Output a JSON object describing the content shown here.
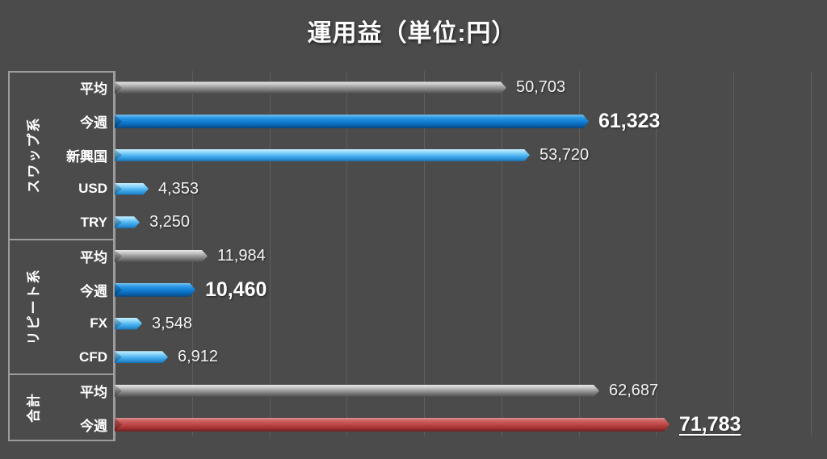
{
  "title": "運用益（単位:円）",
  "colors": {
    "background": "#4b4b4b",
    "gridline": "#5e5e5e",
    "axis": "#9c9c9c",
    "box_border": "#9c9c9c",
    "text": "#ffffff",
    "bar_gray": "#9a9a9a",
    "bar_blue": "#0f7ad0",
    "bar_lightblue": "#49b1ee",
    "bar_red": "#b84242"
  },
  "chart_data": {
    "type": "bar",
    "orientation": "horizontal",
    "title": "運用益（単位:円）",
    "unit": "円",
    "axis": {
      "min": 0,
      "max": 90000,
      "gridline_interval": 10000,
      "gridlines_visible": true,
      "tick_labels_visible": false
    },
    "legend_position": "none",
    "groups": [
      {
        "label": "スワップ系",
        "rows": [
          {
            "label": "平均",
            "value": 50703,
            "value_label": "50,703",
            "color": "gray",
            "emphasis": false,
            "underline": false
          },
          {
            "label": "今週",
            "value": 61323,
            "value_label": "61,323",
            "color": "blue",
            "emphasis": true,
            "underline": false
          },
          {
            "label": "新興国",
            "value": 53720,
            "value_label": "53,720",
            "color": "lightblue",
            "emphasis": false,
            "underline": false
          },
          {
            "label": "USD",
            "value": 4353,
            "value_label": "4,353",
            "color": "lightblue",
            "emphasis": false,
            "underline": false
          },
          {
            "label": "TRY",
            "value": 3250,
            "value_label": "3,250",
            "color": "lightblue",
            "emphasis": false,
            "underline": false
          }
        ]
      },
      {
        "label": "リピート系",
        "rows": [
          {
            "label": "平均",
            "value": 11984,
            "value_label": "11,984",
            "color": "gray",
            "emphasis": false,
            "underline": false
          },
          {
            "label": "今週",
            "value": 10460,
            "value_label": "10,460",
            "color": "blue",
            "emphasis": true,
            "underline": false
          },
          {
            "label": "FX",
            "value": 3548,
            "value_label": "3,548",
            "color": "lightblue",
            "emphasis": false,
            "underline": false
          },
          {
            "label": "CFD",
            "value": 6912,
            "value_label": "6,912",
            "color": "lightblue",
            "emphasis": false,
            "underline": false
          }
        ]
      },
      {
        "label": "合計",
        "rows": [
          {
            "label": "平均",
            "value": 62687,
            "value_label": "62,687",
            "color": "gray",
            "emphasis": false,
            "underline": false
          },
          {
            "label": "今週",
            "value": 71783,
            "value_label": "71,783",
            "color": "red",
            "emphasis": true,
            "underline": true
          }
        ]
      }
    ]
  }
}
